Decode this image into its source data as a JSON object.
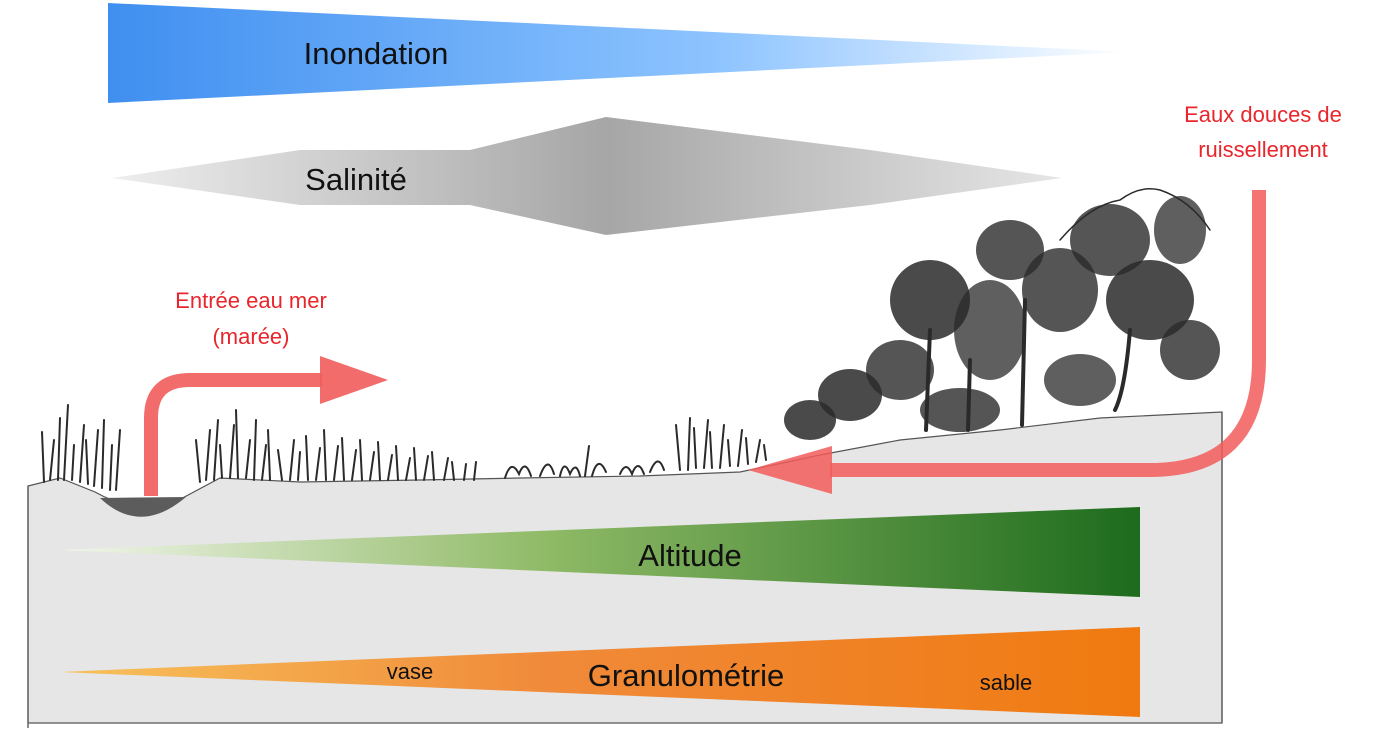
{
  "gradients": {
    "inondation": {
      "label": "Inondation",
      "colors": [
        "#3f8ff0",
        "#8ec4ff",
        "#ffffff"
      ]
    },
    "salinite": {
      "label": "Salinité",
      "colors": [
        "#eeeeee",
        "#a6a6a6",
        "#e6e6e6"
      ]
    },
    "altitude": {
      "label": "Altitude",
      "colors": [
        "#f2f6ec",
        "#8fba66",
        "#1d6b1d"
      ]
    },
    "granulometrie": {
      "label": "Granulométrie",
      "low_label": "vase",
      "high_label": "sable",
      "colors": [
        "#f7c15a",
        "#f08a3a",
        "#f07a10"
      ]
    }
  },
  "flows": {
    "sea_water": {
      "line1": "Entrée eau mer",
      "line2": "(marée)"
    },
    "fresh_water": {
      "line1": "Eaux douces de",
      "line2": "ruissellement"
    },
    "arrow_color": "#f25c5c",
    "label_color": "#e8262b"
  },
  "landscape": {
    "ground_color": "#e6e6e6",
    "water_color": "#5c5c5c",
    "vegetation_color": "#2a2a2a"
  }
}
